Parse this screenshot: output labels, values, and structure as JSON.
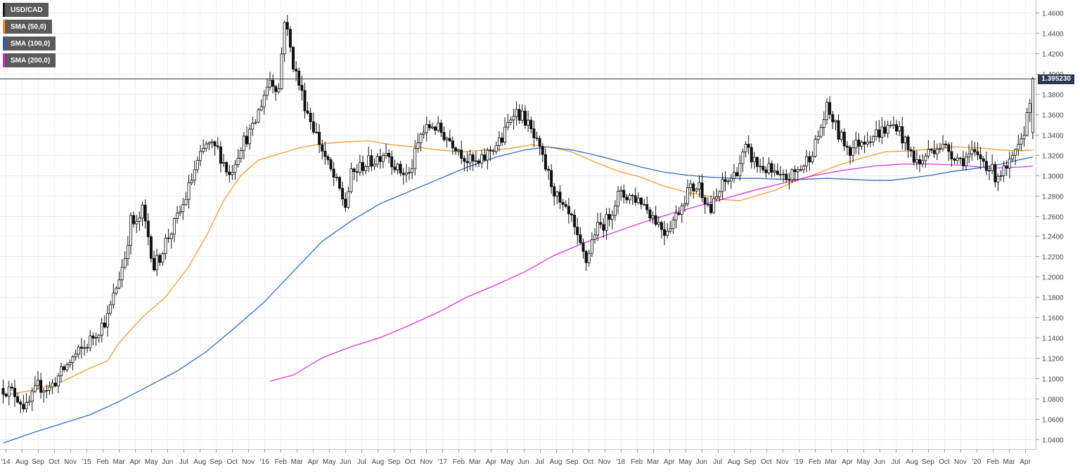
{
  "legend": [
    {
      "label": "USD/CAD",
      "color": "#1a1a1a"
    },
    {
      "label": "SMA (50,0)",
      "color": "#f7931e"
    },
    {
      "label": "SMA (100,0)",
      "color": "#2060c0"
    },
    {
      "label": "SMA (200,0)",
      "color": "#e020e0"
    }
  ],
  "current_price_label": "1.395230",
  "chart_data": {
    "type": "line",
    "title": "",
    "ylim": [
      1.03,
      1.47
    ],
    "y_ticks": [
      "1.0400",
      "1.0600",
      "1.0800",
      "1.1000",
      "1.1200",
      "1.1400",
      "1.1600",
      "1.1800",
      "1.2000",
      "1.2200",
      "1.2400",
      "1.2600",
      "1.2800",
      "1.3000",
      "1.3200",
      "1.3400",
      "1.3600",
      "1.3800",
      "1.4000",
      "1.4200",
      "1.4400",
      "1.4600"
    ],
    "x_ticks": [
      "'14",
      "Aug",
      "Sep",
      "Oct",
      "Nov",
      "'15",
      "Feb",
      "Mar",
      "Apr",
      "May",
      "Jun",
      "Jul",
      "Aug",
      "Sep",
      "Oct",
      "Nov",
      "'16",
      "Feb",
      "Mar",
      "Apr",
      "May",
      "Jun",
      "Jul",
      "Aug",
      "Sep",
      "Oct",
      "Nov",
      "'17",
      "Feb",
      "Mar",
      "Apr",
      "May",
      "Jun",
      "Jul",
      "Aug",
      "Sep",
      "Oct",
      "Nov",
      "'18",
      "Feb",
      "Mar",
      "Apr",
      "May",
      "Jun",
      "Jul",
      "Aug",
      "Sep",
      "Oct",
      "Nov",
      "'19",
      "Feb",
      "Mar",
      "Apr",
      "May",
      "Jun",
      "Jul",
      "Aug",
      "Sep",
      "Oct",
      "Nov",
      "'20",
      "Feb",
      "Mar",
      "Apr"
    ],
    "current_price": 1.39523,
    "price_key_points": [
      [
        0,
        1.09
      ],
      [
        4,
        1.085
      ],
      [
        8,
        1.07
      ],
      [
        12,
        1.092
      ],
      [
        16,
        1.09
      ],
      [
        20,
        1.105
      ],
      [
        24,
        1.12
      ],
      [
        28,
        1.13
      ],
      [
        32,
        1.145
      ],
      [
        36,
        1.16
      ],
      [
        40,
        1.2
      ],
      [
        42,
        1.22
      ],
      [
        44,
        1.255
      ],
      [
        46,
        1.25
      ],
      [
        48,
        1.265
      ],
      [
        50,
        1.24
      ],
      [
        52,
        1.21
      ],
      [
        54,
        1.22
      ],
      [
        56,
        1.235
      ],
      [
        58,
        1.245
      ],
      [
        62,
        1.27
      ],
      [
        66,
        1.305
      ],
      [
        70,
        1.33
      ],
      [
        74,
        1.325
      ],
      [
        78,
        1.3
      ],
      [
        82,
        1.33
      ],
      [
        86,
        1.345
      ],
      [
        90,
        1.38
      ],
      [
        92,
        1.395
      ],
      [
        95,
        1.385
      ],
      [
        97,
        1.455
      ],
      [
        100,
        1.41
      ],
      [
        104,
        1.37
      ],
      [
        108,
        1.34
      ],
      [
        112,
        1.31
      ],
      [
        116,
        1.285
      ],
      [
        118,
        1.27
      ],
      [
        120,
        1.3
      ],
      [
        124,
        1.31
      ],
      [
        128,
        1.315
      ],
      [
        132,
        1.325
      ],
      [
        136,
        1.305
      ],
      [
        140,
        1.3
      ],
      [
        144,
        1.34
      ],
      [
        148,
        1.35
      ],
      [
        152,
        1.34
      ],
      [
        156,
        1.33
      ],
      [
        160,
        1.315
      ],
      [
        164,
        1.31
      ],
      [
        168,
        1.325
      ],
      [
        172,
        1.335
      ],
      [
        176,
        1.365
      ],
      [
        180,
        1.355
      ],
      [
        184,
        1.33
      ],
      [
        188,
        1.3
      ],
      [
        192,
        1.27
      ],
      [
        196,
        1.255
      ],
      [
        198,
        1.235
      ],
      [
        201,
        1.215
      ],
      [
        204,
        1.245
      ],
      [
        208,
        1.255
      ],
      [
        212,
        1.28
      ],
      [
        216,
        1.28
      ],
      [
        220,
        1.275
      ],
      [
        224,
        1.26
      ],
      [
        228,
        1.245
      ],
      [
        232,
        1.26
      ],
      [
        236,
        1.285
      ],
      [
        240,
        1.29
      ],
      [
        244,
        1.265
      ],
      [
        248,
        1.29
      ],
      [
        252,
        1.3
      ],
      [
        256,
        1.325
      ],
      [
        260,
        1.31
      ],
      [
        264,
        1.305
      ],
      [
        268,
        1.295
      ],
      [
        272,
        1.3
      ],
      [
        276,
        1.31
      ],
      [
        280,
        1.33
      ],
      [
        284,
        1.365
      ],
      [
        286,
        1.355
      ],
      [
        288,
        1.34
      ],
      [
        292,
        1.325
      ],
      [
        296,
        1.335
      ],
      [
        300,
        1.34
      ],
      [
        304,
        1.345
      ],
      [
        308,
        1.35
      ],
      [
        312,
        1.325
      ],
      [
        316,
        1.31
      ],
      [
        318,
        1.32
      ],
      [
        322,
        1.33
      ],
      [
        326,
        1.325
      ],
      [
        330,
        1.315
      ],
      [
        334,
        1.32
      ],
      [
        338,
        1.315
      ],
      [
        342,
        1.3
      ],
      [
        346,
        1.305
      ],
      [
        348,
        1.315
      ],
      [
        351,
        1.33
      ],
      [
        353,
        1.36
      ],
      [
        355,
        1.395
      ]
    ],
    "series": [
      {
        "name": "SMA (50,0)",
        "color": "#f7931e",
        "points": [
          [
            0,
            1.083
          ],
          [
            10,
            1.088
          ],
          [
            20,
            1.096
          ],
          [
            30,
            1.11
          ],
          [
            36,
            1.117
          ],
          [
            40,
            1.135
          ],
          [
            48,
            1.16
          ],
          [
            56,
            1.18
          ],
          [
            64,
            1.21
          ],
          [
            70,
            1.24
          ],
          [
            76,
            1.275
          ],
          [
            82,
            1.3
          ],
          [
            88,
            1.315
          ],
          [
            94,
            1.32
          ],
          [
            102,
            1.327
          ],
          [
            110,
            1.331
          ],
          [
            118,
            1.333
          ],
          [
            126,
            1.334
          ],
          [
            134,
            1.33
          ],
          [
            142,
            1.328
          ],
          [
            150,
            1.325
          ],
          [
            158,
            1.323
          ],
          [
            166,
            1.325
          ],
          [
            174,
            1.326
          ],
          [
            182,
            1.33
          ],
          [
            188,
            1.328
          ],
          [
            196,
            1.323
          ],
          [
            204,
            1.313
          ],
          [
            212,
            1.304
          ],
          [
            220,
            1.298
          ],
          [
            228,
            1.289
          ],
          [
            236,
            1.283
          ],
          [
            244,
            1.279
          ],
          [
            248,
            1.276
          ],
          [
            254,
            1.275
          ],
          [
            260,
            1.28
          ],
          [
            266,
            1.285
          ],
          [
            272,
            1.293
          ],
          [
            280,
            1.301
          ],
          [
            288,
            1.31
          ],
          [
            296,
            1.317
          ],
          [
            304,
            1.323
          ],
          [
            312,
            1.324
          ],
          [
            320,
            1.326
          ],
          [
            328,
            1.328
          ],
          [
            336,
            1.327
          ],
          [
            344,
            1.325
          ],
          [
            350,
            1.324
          ],
          [
            355,
            1.325
          ]
        ]
      },
      {
        "name": "SMA (100,0)",
        "color": "#2060c0",
        "points": [
          [
            0,
            1.036
          ],
          [
            10,
            1.046
          ],
          [
            20,
            1.055
          ],
          [
            30,
            1.064
          ],
          [
            40,
            1.077
          ],
          [
            50,
            1.092
          ],
          [
            60,
            1.107
          ],
          [
            70,
            1.126
          ],
          [
            80,
            1.15
          ],
          [
            90,
            1.175
          ],
          [
            100,
            1.205
          ],
          [
            110,
            1.235
          ],
          [
            120,
            1.255
          ],
          [
            130,
            1.272
          ],
          [
            140,
            1.284
          ],
          [
            150,
            1.296
          ],
          [
            160,
            1.308
          ],
          [
            170,
            1.318
          ],
          [
            180,
            1.325
          ],
          [
            188,
            1.328
          ],
          [
            196,
            1.325
          ],
          [
            204,
            1.32
          ],
          [
            212,
            1.314
          ],
          [
            220,
            1.308
          ],
          [
            228,
            1.303
          ],
          [
            236,
            1.3
          ],
          [
            244,
            1.298
          ],
          [
            252,
            1.297
          ],
          [
            260,
            1.297
          ],
          [
            268,
            1.296
          ],
          [
            276,
            1.296
          ],
          [
            284,
            1.297
          ],
          [
            292,
            1.296
          ],
          [
            300,
            1.295
          ],
          [
            306,
            1.295
          ],
          [
            312,
            1.297
          ],
          [
            320,
            1.3
          ],
          [
            328,
            1.304
          ],
          [
            336,
            1.307
          ],
          [
            344,
            1.311
          ],
          [
            350,
            1.315
          ],
          [
            355,
            1.318
          ]
        ]
      },
      {
        "name": "SMA (200,0)",
        "color": "#e020e0",
        "points": [
          [
            92,
            1.097
          ],
          [
            100,
            1.103
          ],
          [
            110,
            1.12
          ],
          [
            120,
            1.131
          ],
          [
            130,
            1.14
          ],
          [
            140,
            1.152
          ],
          [
            150,
            1.165
          ],
          [
            160,
            1.18
          ],
          [
            170,
            1.192
          ],
          [
            180,
            1.205
          ],
          [
            190,
            1.221
          ],
          [
            200,
            1.233
          ],
          [
            210,
            1.243
          ],
          [
            220,
            1.253
          ],
          [
            230,
            1.262
          ],
          [
            240,
            1.27
          ],
          [
            250,
            1.278
          ],
          [
            260,
            1.286
          ],
          [
            270,
            1.293
          ],
          [
            280,
            1.3
          ],
          [
            290,
            1.305
          ],
          [
            300,
            1.309
          ],
          [
            310,
            1.311
          ],
          [
            320,
            1.311
          ],
          [
            330,
            1.31
          ],
          [
            340,
            1.307
          ],
          [
            350,
            1.308
          ],
          [
            355,
            1.309
          ]
        ]
      }
    ]
  }
}
